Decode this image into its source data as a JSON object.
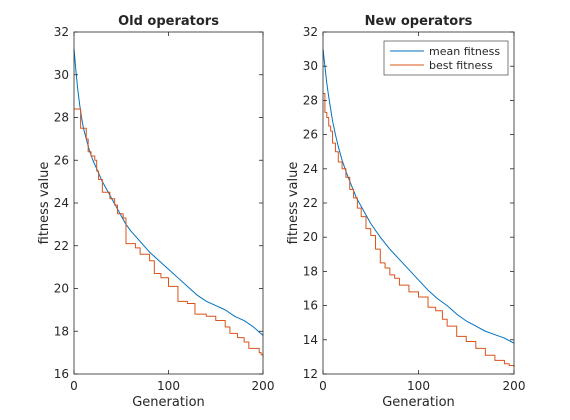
{
  "chart_data": [
    {
      "type": "line",
      "title": "Old operators",
      "xlabel": "Generation",
      "ylabel": "fitness value",
      "xlim": [
        0,
        200
      ],
      "ylim": [
        16,
        32
      ],
      "x_ticks": [
        0,
        100,
        200
      ],
      "y_ticks": [
        16,
        18,
        20,
        22,
        24,
        26,
        28,
        30,
        32
      ],
      "grid": false,
      "legend": null,
      "series": [
        {
          "color": "#0072BD",
          "step": false,
          "points": [
            [
              0,
              31.2
            ],
            [
              2,
              30.2
            ],
            [
              4,
              29.3
            ],
            [
              6,
              28.6
            ],
            [
              8,
              28.0
            ],
            [
              10,
              27.5
            ],
            [
              13,
              27.0
            ],
            [
              16,
              26.5
            ],
            [
              20,
              26.0
            ],
            [
              25,
              25.5
            ],
            [
              30,
              25.0
            ],
            [
              35,
              24.6
            ],
            [
              40,
              24.2
            ],
            [
              45,
              23.8
            ],
            [
              50,
              23.4
            ],
            [
              55,
              23.0
            ],
            [
              60,
              22.7
            ],
            [
              70,
              22.2
            ],
            [
              80,
              21.7
            ],
            [
              90,
              21.3
            ],
            [
              100,
              20.9
            ],
            [
              110,
              20.5
            ],
            [
              120,
              20.1
            ],
            [
              130,
              19.7
            ],
            [
              140,
              19.4
            ],
            [
              150,
              19.2
            ],
            [
              160,
              19.0
            ],
            [
              170,
              18.7
            ],
            [
              180,
              18.5
            ],
            [
              190,
              18.2
            ],
            [
              195,
              18.0
            ],
            [
              200,
              17.8
            ]
          ]
        },
        {
          "color": "#D95319",
          "step": true,
          "points": [
            [
              0,
              28.4
            ],
            [
              7,
              27.5
            ],
            [
              13,
              27.0
            ],
            [
              15,
              26.4
            ],
            [
              18,
              26.2
            ],
            [
              22,
              26.0
            ],
            [
              24,
              25.5
            ],
            [
              26,
              25.1
            ],
            [
              30,
              24.5
            ],
            [
              38,
              24.2
            ],
            [
              43,
              23.9
            ],
            [
              46,
              23.5
            ],
            [
              52,
              23.3
            ],
            [
              55,
              22.1
            ],
            [
              65,
              21.9
            ],
            [
              70,
              21.6
            ],
            [
              80,
              21.3
            ],
            [
              85,
              20.7
            ],
            [
              92,
              20.5
            ],
            [
              100,
              20.1
            ],
            [
              110,
              19.4
            ],
            [
              120,
              19.3
            ],
            [
              128,
              18.8
            ],
            [
              140,
              18.7
            ],
            [
              150,
              18.5
            ],
            [
              160,
              18.2
            ],
            [
              165,
              17.9
            ],
            [
              173,
              17.7
            ],
            [
              180,
              17.5
            ],
            [
              185,
              17.2
            ],
            [
              196,
              17.0
            ],
            [
              198,
              16.9
            ],
            [
              200,
              16.8
            ]
          ]
        }
      ]
    },
    {
      "type": "line",
      "title": "New operators",
      "xlabel": "Generation",
      "ylabel": "fitness value",
      "xlim": [
        0,
        200
      ],
      "ylim": [
        12,
        32
      ],
      "x_ticks": [
        0,
        100,
        200
      ],
      "y_ticks": [
        12,
        14,
        16,
        18,
        20,
        22,
        24,
        26,
        28,
        30,
        32
      ],
      "grid": false,
      "legend": {
        "position": "top-right",
        "entries": [
          "mean fitness",
          "best fitness"
        ]
      },
      "series": [
        {
          "name": "mean fitness",
          "color": "#0072BD",
          "step": false,
          "points": [
            [
              0,
              31.0
            ],
            [
              2,
              30.0
            ],
            [
              4,
              29.0
            ],
            [
              6,
              28.2
            ],
            [
              8,
              27.5
            ],
            [
              10,
              26.8
            ],
            [
              13,
              26.0
            ],
            [
              16,
              25.3
            ],
            [
              20,
              24.5
            ],
            [
              25,
              23.7
            ],
            [
              30,
              23.0
            ],
            [
              35,
              22.3
            ],
            [
              40,
              21.8
            ],
            [
              45,
              21.3
            ],
            [
              50,
              20.8
            ],
            [
              55,
              20.4
            ],
            [
              60,
              20.0
            ],
            [
              70,
              19.3
            ],
            [
              80,
              18.7
            ],
            [
              90,
              18.1
            ],
            [
              100,
              17.5
            ],
            [
              110,
              16.9
            ],
            [
              120,
              16.4
            ],
            [
              130,
              16.0
            ],
            [
              140,
              15.5
            ],
            [
              150,
              15.1
            ],
            [
              160,
              14.8
            ],
            [
              170,
              14.5
            ],
            [
              180,
              14.3
            ],
            [
              190,
              14.1
            ],
            [
              200,
              13.8
            ]
          ]
        },
        {
          "name": "best fitness",
          "color": "#D95319",
          "step": true,
          "points": [
            [
              0,
              28.4
            ],
            [
              2,
              27.3
            ],
            [
              4,
              27.0
            ],
            [
              6,
              26.5
            ],
            [
              8,
              26.2
            ],
            [
              10,
              25.5
            ],
            [
              13,
              25.0
            ],
            [
              16,
              24.4
            ],
            [
              20,
              24.0
            ],
            [
              24,
              23.5
            ],
            [
              28,
              22.8
            ],
            [
              32,
              22.3
            ],
            [
              36,
              21.7
            ],
            [
              40,
              21.2
            ],
            [
              45,
              20.5
            ],
            [
              50,
              20.1
            ],
            [
              55,
              19.3
            ],
            [
              60,
              18.5
            ],
            [
              65,
              18.2
            ],
            [
              70,
              17.8
            ],
            [
              75,
              17.6
            ],
            [
              80,
              17.2
            ],
            [
              90,
              16.8
            ],
            [
              100,
              16.5
            ],
            [
              110,
              15.9
            ],
            [
              118,
              15.7
            ],
            [
              125,
              15.2
            ],
            [
              130,
              14.8
            ],
            [
              140,
              14.2
            ],
            [
              150,
              13.9
            ],
            [
              160,
              13.5
            ],
            [
              170,
              13.1
            ],
            [
              180,
              12.8
            ],
            [
              190,
              12.6
            ],
            [
              195,
              12.5
            ],
            [
              200,
              12.4
            ]
          ]
        }
      ]
    }
  ]
}
